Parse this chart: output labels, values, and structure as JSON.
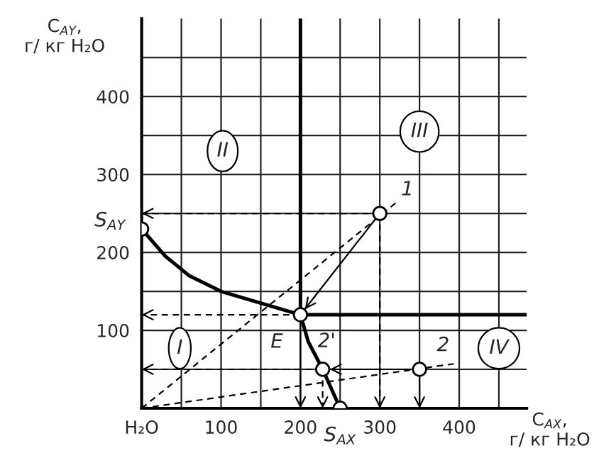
{
  "chart_data": {
    "type": "line",
    "xlabel": "C$_{AX}$,\nг/ кг H₂O",
    "ylabel": "C$_{AY}$,\nг/ кг H₂O",
    "xlim": [
      0,
      485
    ],
    "ylim": [
      0,
      500
    ],
    "xticks": [
      {
        "value": 0,
        "label": "H₂O"
      },
      {
        "value": 50,
        "label": null
      },
      100,
      {
        "value": 150,
        "label": null
      },
      200,
      {
        "value": 250,
        "label": null
      },
      300,
      {
        "value": 350,
        "label": null
      },
      400,
      {
        "value": 450,
        "label": null
      }
    ],
    "yticks": [
      {
        "value": 50,
        "label": null
      },
      100,
      {
        "value": 150,
        "label": null
      },
      200,
      {
        "value": 250,
        "label": null
      },
      300,
      {
        "value": 350,
        "label": null
      },
      400,
      {
        "value": 450,
        "label": null
      }
    ],
    "grid": true,
    "line_style": "solid",
    "marker": "none",
    "series": [
      {
        "color": "#000000",
        "x": [
          0,
          30,
          60,
          100,
          150,
          200
        ],
        "values": [
          230,
          195,
          170,
          150,
          135,
          120
        ]
      },
      {
        "color": "#000000",
        "x": [
          200,
          210,
          228,
          250
        ],
        "values": [
          120,
          85,
          50,
          0
        ]
      },
      {
        "color": "#000000",
        "x": [
          200,
          200
        ],
        "values": [
          120,
          500
        ]
      },
      {
        "color": "#000000",
        "x": [
          200,
          485
        ],
        "values": [
          120,
          120
        ]
      },
      {
        "line_style": "dashed",
        "color": "#000000",
        "x": [
          0,
          322
        ],
        "values": [
          0,
          265
        ]
      },
      {
        "line_style": "dashed",
        "color": "#000000",
        "x": [
          0,
          400
        ],
        "values": [
          0,
          58
        ]
      },
      {
        "type": "scatter",
        "marker": "circle",
        "color": "#000000",
        "x": [
          0,
          200,
          300,
          350,
          228,
          250
        ],
        "values": [
          230,
          120,
          250,
          50,
          50,
          0
        ]
      }
    ],
    "annotations": [
      {
        "text": "S$_{AY}$",
        "x": 0,
        "y": 230
      },
      {
        "text": "E",
        "x": 200,
        "y": 120
      },
      {
        "text": "1",
        "x": 300,
        "y": 250
      },
      {
        "text": "2",
        "x": 350,
        "y": 50
      },
      {
        "text": "2'",
        "x": 228,
        "y": 50
      },
      {
        "text": "S$_{AX}$",
        "x": 250,
        "y": 0
      },
      {
        "text": "I",
        "x": 48,
        "y": 77
      },
      {
        "text": "II",
        "x": 102,
        "y": 330
      },
      {
        "text": "III",
        "x": 350,
        "y": 355
      },
      {
        "text": "IV",
        "x": 450,
        "y": 77
      }
    ]
  }
}
